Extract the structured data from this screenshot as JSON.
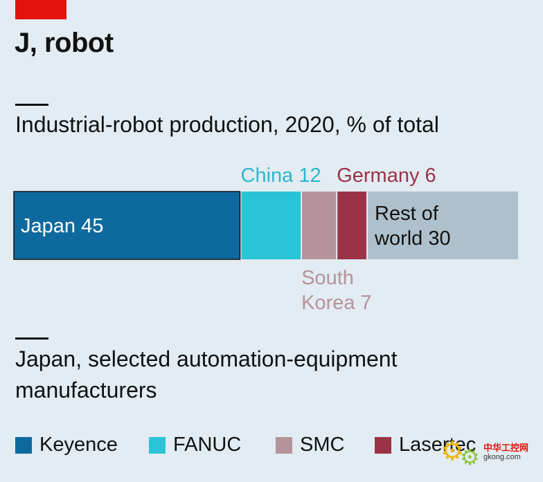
{
  "headline": "J, robot",
  "chart_data": [
    {
      "type": "bar",
      "title": "Industrial-robot production, 2020, % of total",
      "orientation": "horizontal-stacked",
      "unit": "% of total",
      "segments": [
        {
          "name": "Japan",
          "value": 45,
          "color": "#0e6a9e",
          "label": [
            "Japan 45"
          ],
          "label_position": "inside"
        },
        {
          "name": "China",
          "value": 12,
          "color": "#2bc4d6",
          "label": [
            "China 12"
          ],
          "label_position": "above",
          "label_color": "#2bb8cc"
        },
        {
          "name": "South Korea",
          "value": 7,
          "color": "#b5939a",
          "label": [
            "South",
            "Korea 7"
          ],
          "label_position": "below",
          "label_color": "#b5939a"
        },
        {
          "name": "Germany",
          "value": 6,
          "color": "#9b3347",
          "label": [
            "Germany 6"
          ],
          "label_position": "above",
          "label_color": "#9b3347"
        },
        {
          "name": "Rest of world",
          "value": 30,
          "color": "#aec0cb",
          "label": [
            "Rest of",
            "world 30"
          ],
          "label_position": "inside",
          "label_color": "#111111"
        }
      ]
    }
  ],
  "section2": {
    "title_line1": "Japan, selected automation-equipment",
    "title_line2": "manufacturers"
  },
  "legend": [
    {
      "name": "Keyence",
      "color": "#0e6a9e"
    },
    {
      "name": "FANUC",
      "color": "#2bc4d6"
    },
    {
      "name": "SMC",
      "color": "#b5939a"
    },
    {
      "name": "Lasertec",
      "color": "#9b3347"
    }
  ],
  "watermark": {
    "site_cn": "中华工控网",
    "site_url": "gkong.com"
  }
}
